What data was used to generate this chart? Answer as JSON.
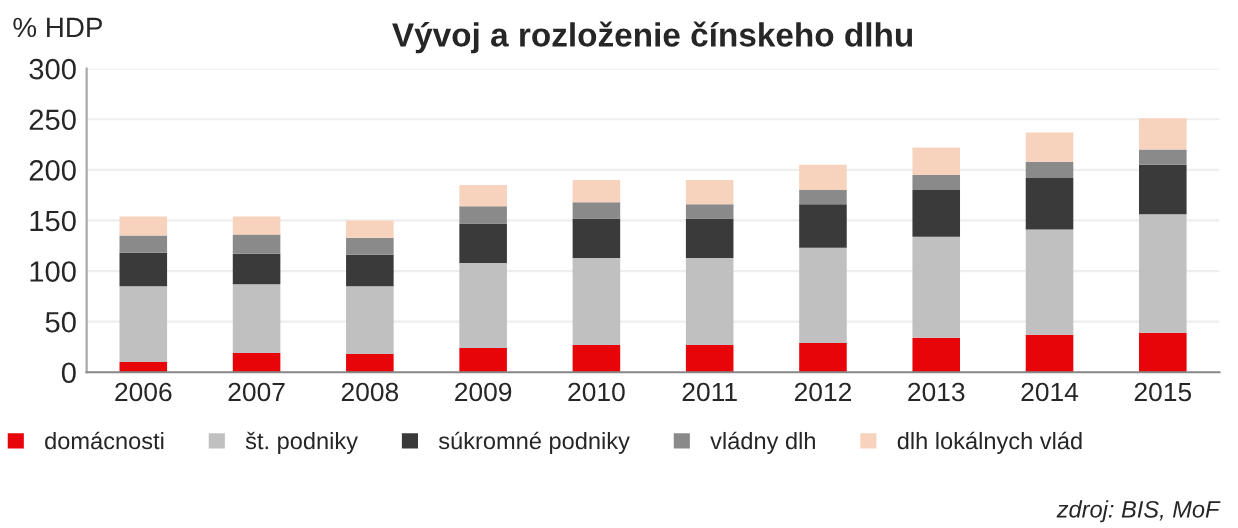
{
  "chart_data": {
    "type": "bar",
    "title": "Vývoj a rozloženie čínskeho dlhu",
    "ylabel": "% HDP",
    "categories": [
      "2006",
      "2007",
      "2008",
      "2009",
      "2010",
      "2011",
      "2012",
      "2013",
      "2014",
      "2015"
    ],
    "stacked": true,
    "series": [
      {
        "name": "domácnosti",
        "color": "#e8050a",
        "values": [
          10,
          19,
          18,
          24,
          27,
          27,
          29,
          34,
          37,
          39
        ]
      },
      {
        "name": "št. podniky",
        "color": "#c0c0c0",
        "values": [
          75,
          68,
          67,
          84,
          86,
          86,
          94,
          100,
          104,
          117
        ]
      },
      {
        "name": "súkromné podniky",
        "color": "#3a3a3a",
        "values": [
          33,
          30,
          31,
          39,
          39,
          39,
          43,
          46,
          51,
          49
        ]
      },
      {
        "name": "vládny dlh",
        "color": "#8a8a8a",
        "values": [
          17,
          19,
          17,
          17,
          16,
          14,
          14,
          15,
          16,
          15
        ]
      },
      {
        "name": "dlh lokálnych vlád",
        "color": "#f7d2bd",
        "values": [
          19,
          18,
          17,
          21,
          22,
          24,
          25,
          27,
          29,
          31
        ]
      }
    ],
    "ylim": [
      0,
      300
    ],
    "yticks": [
      0,
      50,
      100,
      150,
      200,
      250,
      300
    ],
    "grid": "y",
    "legend": "bottom",
    "annotations": [
      "zdroj: BIS, MoF"
    ]
  }
}
